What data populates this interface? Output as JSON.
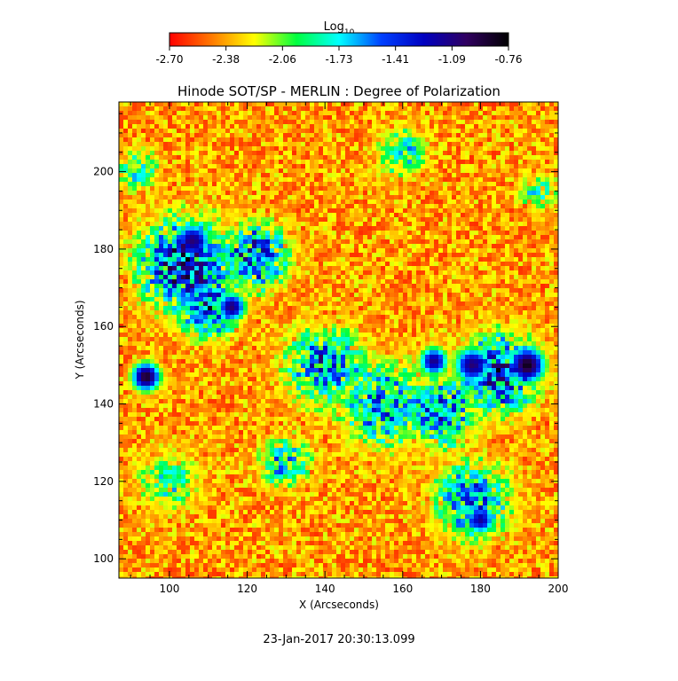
{
  "chart_data": {
    "type": "heatmap",
    "title": "Hinode SOT/SP - MERLIN : Degree of Polarization",
    "xlabel": "X (Arcseconds)",
    "ylabel": "Y (Arcseconds)",
    "xlim": [
      87,
      200
    ],
    "ylim": [
      95,
      218
    ],
    "xticks": [
      100,
      120,
      140,
      160,
      180,
      200
    ],
    "yticks": [
      100,
      120,
      140,
      160,
      180,
      200
    ],
    "colorbar": {
      "label": "Log",
      "label_subscript": "10",
      "range": [
        -2.7,
        -0.76
      ],
      "ticks": [
        "-2.70",
        "-2.38",
        "-2.06",
        "-1.73",
        "-1.41",
        "-1.09",
        "-0.76"
      ],
      "colors": [
        "#ff0000",
        "#ff7a00",
        "#ffff00",
        "#00ff40",
        "#00ffff",
        "#0040ff",
        "#0000c0",
        "#300060",
        "#000000"
      ]
    },
    "features": [
      {
        "x": 94,
        "y": 147,
        "value": -0.85,
        "radius": 4
      },
      {
        "x": 106,
        "y": 182,
        "value": -1.05,
        "radius": 5
      },
      {
        "x": 116,
        "y": 165,
        "value": -1.05,
        "radius": 4
      },
      {
        "x": 192,
        "y": 150,
        "value": -0.82,
        "radius": 5
      },
      {
        "x": 178,
        "y": 150,
        "value": -1.05,
        "radius": 5
      },
      {
        "x": 168,
        "y": 151,
        "value": -1.1,
        "radius": 4
      },
      {
        "x": 180,
        "y": 110,
        "value": -1.15,
        "radius": 4
      }
    ],
    "regions": [
      {
        "x": 104,
        "y": 176,
        "value": -1.35,
        "radius": 14
      },
      {
        "x": 122,
        "y": 178,
        "value": -1.45,
        "radius": 10
      },
      {
        "x": 110,
        "y": 165,
        "value": -1.4,
        "radius": 9
      },
      {
        "x": 140,
        "y": 150,
        "value": -1.55,
        "radius": 12
      },
      {
        "x": 155,
        "y": 140,
        "value": -1.6,
        "radius": 13
      },
      {
        "x": 170,
        "y": 138,
        "value": -1.55,
        "radius": 11
      },
      {
        "x": 185,
        "y": 148,
        "value": -1.4,
        "radius": 12
      },
      {
        "x": 178,
        "y": 115,
        "value": -1.6,
        "radius": 12
      },
      {
        "x": 130,
        "y": 125,
        "value": -1.75,
        "radius": 8
      },
      {
        "x": 100,
        "y": 120,
        "value": -1.95,
        "radius": 10
      },
      {
        "x": 160,
        "y": 205,
        "value": -1.85,
        "radius": 8
      },
      {
        "x": 92,
        "y": 200,
        "value": -1.9,
        "radius": 7
      },
      {
        "x": 195,
        "y": 195,
        "value": -1.9,
        "radius": 6
      }
    ],
    "grid": false
  },
  "footer": {
    "timestamp": "23-Jan-2017 20:30:13.099"
  }
}
